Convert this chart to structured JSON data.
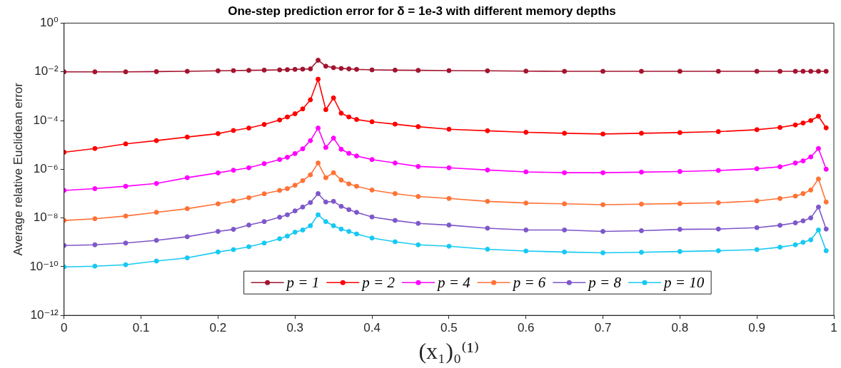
{
  "chart_data": {
    "type": "line",
    "title": "One-step prediction error for δ = 1e-3 with different memory depths",
    "xlabel": "(x₁)₀⁽¹⁾",
    "ylabel": "Average relative Euclidean error",
    "x": [
      0,
      0.04,
      0.08,
      0.12,
      0.16,
      0.2,
      0.22,
      0.24,
      0.26,
      0.28,
      0.29,
      0.3,
      0.31,
      0.32,
      0.33,
      0.34,
      0.35,
      0.36,
      0.37,
      0.38,
      0.4,
      0.43,
      0.46,
      0.5,
      0.55,
      0.6,
      0.65,
      0.7,
      0.75,
      0.8,
      0.85,
      0.9,
      0.93,
      0.95,
      0.96,
      0.97,
      0.98,
      0.99
    ],
    "series": [
      {
        "name": "p = 1",
        "color": "#a2142f",
        "values": [
          0.01,
          0.01,
          0.01,
          0.0102,
          0.0105,
          0.011,
          0.0112,
          0.0115,
          0.0117,
          0.012,
          0.0123,
          0.0126,
          0.0129,
          0.0132,
          0.03,
          0.017,
          0.0148,
          0.0138,
          0.0132,
          0.0126,
          0.012,
          0.0117,
          0.0115,
          0.0112,
          0.011,
          0.0107,
          0.0105,
          0.0105,
          0.0105,
          0.0105,
          0.0105,
          0.0105,
          0.0105,
          0.0105,
          0.0105,
          0.0105,
          0.0105,
          0.0105
        ]
      },
      {
        "name": "p = 2",
        "color": "#ff0000",
        "values": [
          5e-06,
          7.1e-06,
          1.1e-05,
          1.5e-05,
          2.1e-05,
          2.9e-05,
          3.9e-05,
          4.9e-05,
          6.9e-05,
          0.000105,
          0.00014,
          0.00019,
          0.0003,
          0.00071,
          0.005,
          0.00028,
          0.00085,
          0.0002,
          0.00014,
          0.00011,
          8.9e-05,
          7.1e-05,
          5.6e-05,
          4.4e-05,
          3.8e-05,
          3.3e-05,
          3e-05,
          2.8e-05,
          3e-05,
          3.2e-05,
          3.5e-05,
          4.2e-05,
          5.2e-05,
          6.6e-05,
          7.9e-05,
          0.0001,
          0.00015,
          5e-05
        ]
      },
      {
        "name": "p = 4",
        "color": "#ff00ff",
        "values": [
          1.35e-07,
          1.6e-07,
          2e-07,
          2.6e-07,
          4.5e-07,
          7.1e-07,
          9.1e-07,
          1.15e-06,
          1.7e-06,
          2.5e-06,
          3.1e-06,
          4.4e-06,
          6.9e-06,
          1.5e-05,
          4.9e-05,
          7.8e-06,
          1.9e-05,
          6.6e-06,
          4.5e-06,
          3.5e-06,
          2.5e-06,
          1.8e-06,
          1.3e-06,
          1.15e-06,
          9.3e-07,
          7.8e-07,
          7.2e-07,
          7.2e-07,
          7.6e-07,
          8.1e-07,
          8.9e-07,
          1.05e-06,
          1.26e-06,
          1.8e-06,
          2.2e-06,
          3.2e-06,
          7.1e-06,
          1e-06
        ]
      },
      {
        "name": "p = 6",
        "color": "#ff7236",
        "values": [
          7.9e-09,
          9.3e-09,
          1.2e-08,
          1.7e-08,
          2.4e-08,
          3.8e-08,
          5e-08,
          6.8e-08,
          9.8e-08,
          1.35e-07,
          1.6e-07,
          2.2e-07,
          3.4e-07,
          5.9e-07,
          1.8e-06,
          4.5e-07,
          7.2e-07,
          3.6e-07,
          2.5e-07,
          2e-07,
          1.4e-07,
          1e-07,
          7.6e-08,
          6.3e-08,
          4.8e-08,
          4.1e-08,
          3.8e-08,
          3.5e-08,
          3.7e-08,
          3.9e-08,
          4.2e-08,
          5e-08,
          6.3e-08,
          7.9e-08,
          1e-07,
          1.4e-07,
          4e-07,
          4.5e-08
        ]
      },
      {
        "name": "p = 8",
        "color": "#7e57c9",
        "values": [
          7.4e-10,
          7.9e-10,
          9.3e-10,
          1.2e-09,
          1.7e-09,
          2.8e-09,
          3.4e-09,
          5.1e-09,
          7.1e-09,
          1.07e-08,
          1.35e-08,
          1.95e-08,
          2.8e-08,
          4.3e-08,
          1e-07,
          4.5e-08,
          4.8e-08,
          3e-08,
          2.2e-08,
          1.7e-08,
          1.1e-08,
          7.9e-09,
          6e-09,
          5.1e-09,
          3.8e-09,
          3.2e-09,
          3.2e-09,
          2.8e-09,
          3e-09,
          3.4e-09,
          3.5e-09,
          4e-09,
          5e-09,
          6.3e-09,
          7.6e-09,
          1e-08,
          2.8e-08,
          3.5e-09
        ]
      },
      {
        "name": "p = 10",
        "color": "#17c9f2",
        "values": [
          9.8e-11,
          1.05e-10,
          1.2e-10,
          1.7e-10,
          2.3e-10,
          4e-10,
          5e-10,
          6.6e-10,
          9.3e-10,
          1.4e-09,
          1.8e-09,
          2.6e-09,
          3.2e-09,
          4.8e-09,
          1.35e-08,
          7.1e-09,
          4.8e-09,
          3.5e-09,
          2.8e-09,
          2.2e-09,
          1.5e-09,
          1.05e-09,
          7.9e-10,
          6.9e-10,
          5.2e-10,
          4.4e-10,
          4e-10,
          3.7e-10,
          3.9e-10,
          4.2e-10,
          4.5e-10,
          5e-10,
          6.3e-10,
          7.9e-10,
          1e-09,
          1.26e-09,
          3.2e-09,
          4.5e-10
        ]
      }
    ],
    "xlim": [
      0,
      1
    ],
    "xticks": [
      0,
      0.1,
      0.2,
      0.3,
      0.4,
      0.5,
      0.6,
      0.7,
      0.8,
      0.9,
      1
    ],
    "ylim": [
      1e-12,
      1
    ],
    "yticks": [
      {
        "value": 1,
        "label": "10⁰"
      },
      {
        "value": 0.01,
        "label": "10⁻²"
      },
      {
        "value": 0.0001,
        "label": "10⁻⁴"
      },
      {
        "value": 1e-06,
        "label": "10⁻⁶"
      },
      {
        "value": 1e-08,
        "label": "10⁻⁸"
      },
      {
        "value": 1e-10,
        "label": "10⁻¹⁰"
      },
      {
        "value": 1e-12,
        "label": "10⁻¹²"
      }
    ],
    "log": true,
    "legend": "bottom",
    "marker": "circle"
  }
}
